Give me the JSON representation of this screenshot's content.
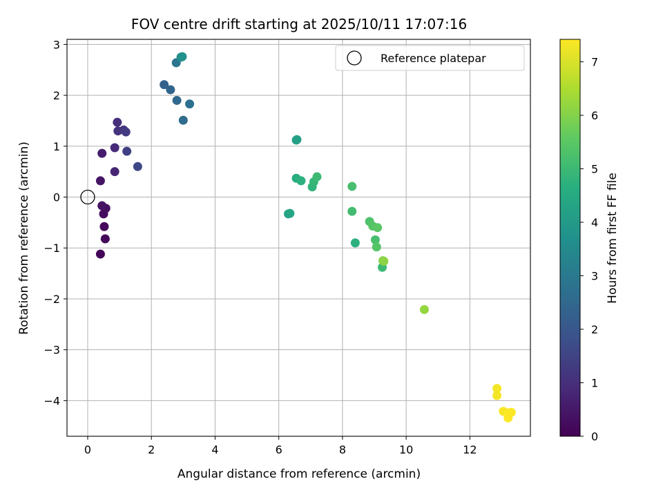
{
  "chart_data": {
    "type": "scatter",
    "title": "FOV centre drift starting at 2025/10/11 17:07:16",
    "xlabel": "Angular distance from reference (arcmin)",
    "ylabel": "Rotation from reference (arcmin)",
    "xlim": [
      -0.65,
      13.9
    ],
    "ylim": [
      -4.7,
      3.1
    ],
    "xticks": [
      0,
      2,
      4,
      6,
      8,
      10,
      12
    ],
    "yticks": [
      -4,
      -3,
      -2,
      -1,
      0,
      1,
      2,
      3
    ],
    "xtick_labels": [
      "0",
      "2",
      "4",
      "6",
      "8",
      "10",
      "12"
    ],
    "ytick_labels": [
      "−4",
      "−3",
      "−2",
      "−1",
      "0",
      "1",
      "2",
      "3"
    ],
    "grid": true,
    "colormap": "viridis",
    "colorbar": {
      "label": "Hours from first FF file",
      "range": [
        0,
        7.42
      ],
      "ticks": [
        0,
        1,
        2,
        3,
        4,
        5,
        6,
        7
      ],
      "tick_labels": [
        "0",
        "1",
        "2",
        "3",
        "4",
        "5",
        "6",
        "7"
      ]
    },
    "legend": {
      "location": "top-right",
      "label": "Reference platepar",
      "marker": "open-circle"
    },
    "reference_point": {
      "x": 0,
      "y": 0
    },
    "series": [
      {
        "name": "FF files",
        "points": [
          {
            "x": 0.4,
            "y": -1.12,
            "hours": 0.1
          },
          {
            "x": 0.55,
            "y": -0.82,
            "hours": 0.15
          },
          {
            "x": 0.52,
            "y": -0.58,
            "hours": 0.2
          },
          {
            "x": 0.5,
            "y": -0.33,
            "hours": 0.25
          },
          {
            "x": 0.57,
            "y": -0.22,
            "hours": 0.3
          },
          {
            "x": 0.45,
            "y": -0.17,
            "hours": 0.35
          },
          {
            "x": 0.4,
            "y": 0.32,
            "hours": 0.4
          },
          {
            "x": 0.45,
            "y": 0.86,
            "hours": 0.6
          },
          {
            "x": 0.85,
            "y": 0.5,
            "hours": 0.8
          },
          {
            "x": 0.85,
            "y": 0.97,
            "hours": 0.9
          },
          {
            "x": 0.93,
            "y": 1.47,
            "hours": 1.0
          },
          {
            "x": 0.95,
            "y": 1.3,
            "hours": 1.1
          },
          {
            "x": 1.13,
            "y": 1.32,
            "hours": 1.2
          },
          {
            "x": 1.2,
            "y": 1.28,
            "hours": 1.3
          },
          {
            "x": 1.23,
            "y": 0.9,
            "hours": 1.4
          },
          {
            "x": 1.57,
            "y": 0.6,
            "hours": 1.6
          },
          {
            "x": 2.4,
            "y": 2.21,
            "hours": 2.3
          },
          {
            "x": 2.6,
            "y": 2.11,
            "hours": 2.4
          },
          {
            "x": 2.8,
            "y": 1.9,
            "hours": 2.5
          },
          {
            "x": 3.0,
            "y": 1.51,
            "hours": 2.6
          },
          {
            "x": 3.2,
            "y": 1.83,
            "hours": 2.7
          },
          {
            "x": 2.78,
            "y": 2.64,
            "hours": 2.9
          },
          {
            "x": 2.93,
            "y": 2.75,
            "hours": 3.5
          },
          {
            "x": 2.97,
            "y": 2.76,
            "hours": 3.7
          },
          {
            "x": 6.55,
            "y": 1.12,
            "hours": 4.1
          },
          {
            "x": 6.57,
            "y": 1.13,
            "hours": 4.2
          },
          {
            "x": 6.3,
            "y": -0.33,
            "hours": 4.3
          },
          {
            "x": 6.35,
            "y": -0.32,
            "hours": 4.35
          },
          {
            "x": 6.55,
            "y": 0.37,
            "hours": 4.6
          },
          {
            "x": 6.7,
            "y": 0.32,
            "hours": 4.7
          },
          {
            "x": 7.05,
            "y": 0.2,
            "hours": 4.8
          },
          {
            "x": 7.1,
            "y": 0.3,
            "hours": 4.9
          },
          {
            "x": 7.2,
            "y": 0.4,
            "hours": 5.0
          },
          {
            "x": 8.3,
            "y": 0.21,
            "hours": 5.2
          },
          {
            "x": 8.3,
            "y": -0.28,
            "hours": 5.1
          },
          {
            "x": 8.4,
            "y": -0.9,
            "hours": 4.7
          },
          {
            "x": 8.85,
            "y": -0.48,
            "hours": 5.3
          },
          {
            "x": 8.95,
            "y": -0.57,
            "hours": 5.4
          },
          {
            "x": 9.1,
            "y": -0.6,
            "hours": 5.5
          },
          {
            "x": 9.03,
            "y": -0.84,
            "hours": 5.2
          },
          {
            "x": 9.07,
            "y": -0.98,
            "hours": 5.4
          },
          {
            "x": 9.25,
            "y": -1.38,
            "hours": 5.0
          },
          {
            "x": 9.27,
            "y": -1.25,
            "hours": 6.0
          },
          {
            "x": 9.3,
            "y": -1.26,
            "hours": 6.1
          },
          {
            "x": 10.57,
            "y": -2.21,
            "hours": 6.2
          },
          {
            "x": 12.85,
            "y": -3.76,
            "hours": 7.3
          },
          {
            "x": 12.85,
            "y": -3.9,
            "hours": 7.3
          },
          {
            "x": 13.05,
            "y": -4.21,
            "hours": 7.35
          },
          {
            "x": 13.2,
            "y": -4.24,
            "hours": 7.38
          },
          {
            "x": 13.3,
            "y": -4.23,
            "hours": 7.4
          },
          {
            "x": 13.2,
            "y": -4.34,
            "hours": 7.42
          }
        ]
      }
    ]
  }
}
